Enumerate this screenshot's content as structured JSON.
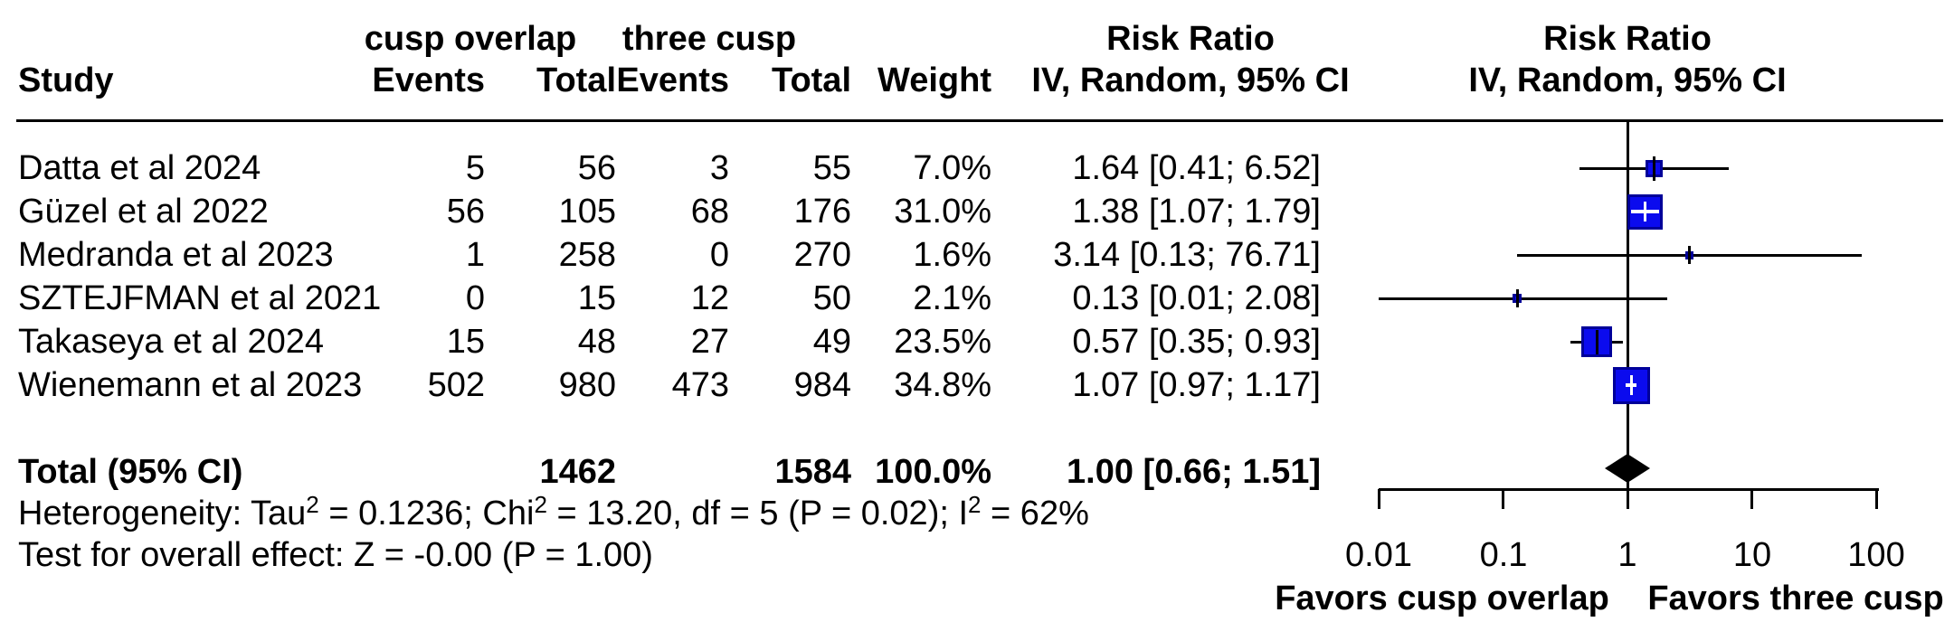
{
  "header": {
    "group1": "cusp overlap",
    "group2": "three cusp",
    "col_study": "Study",
    "col_events1": "Events",
    "col_total1": "Total",
    "col_events2": "Events",
    "col_total2": "Total",
    "col_weight": "Weight",
    "rr_title": "Risk Ratio",
    "rr_subtitle": "IV, Random, 95% CI",
    "plot_rr_title": "Risk Ratio",
    "plot_rr_subtitle": "IV, Random, 95% CI"
  },
  "studies": [
    {
      "name": "Datta et al 2024",
      "events1": "5",
      "total1": "56",
      "events2": "3",
      "total2": "55",
      "weight": "7.0%",
      "weight_pct": 7.0,
      "rr_ci": "1.64 [0.41;  6.52]",
      "rr": 1.64,
      "ci_low": 0.41,
      "ci_high": 6.52
    },
    {
      "name": "Güzel et al 2022",
      "events1": "56",
      "total1": "105",
      "events2": "68",
      "total2": "176",
      "weight": "31.0%",
      "weight_pct": 31.0,
      "rr_ci": "1.38 [1.07;  1.79]",
      "rr": 1.38,
      "ci_low": 1.07,
      "ci_high": 1.79
    },
    {
      "name": "Medranda et al 2023",
      "events1": "1",
      "total1": "258",
      "events2": "0",
      "total2": "270",
      "weight": "1.6%",
      "weight_pct": 1.6,
      "rr_ci": "3.14 [0.13; 76.71]",
      "rr": 3.14,
      "ci_low": 0.13,
      "ci_high": 76.71
    },
    {
      "name": "SZTEJFMAN et al 2021",
      "events1": "0",
      "total1": "15",
      "events2": "12",
      "total2": "50",
      "weight": "2.1%",
      "weight_pct": 2.1,
      "rr_ci": "0.13 [0.01;  2.08]",
      "rr": 0.13,
      "ci_low": 0.01,
      "ci_high": 2.08
    },
    {
      "name": "Takaseya et al 2024",
      "events1": "15",
      "total1": "48",
      "events2": "27",
      "total2": "49",
      "weight": "23.5%",
      "weight_pct": 23.5,
      "rr_ci": "0.57 [0.35;  0.93]",
      "rr": 0.57,
      "ci_low": 0.35,
      "ci_high": 0.93
    },
    {
      "name": "Wienemann et al 2023",
      "events1": "502",
      "total1": "980",
      "events2": "473",
      "total2": "984",
      "weight": "34.8%",
      "weight_pct": 34.8,
      "rr_ci": "1.07 [0.97;  1.17]",
      "rr": 1.07,
      "ci_low": 0.97,
      "ci_high": 1.17
    }
  ],
  "total": {
    "label": "Total (95% CI)",
    "total1": "1462",
    "total2": "1584",
    "weight": "100.0%",
    "rr_ci": "1.00 [0.66;  1.51]",
    "rr": 1.0,
    "ci_low": 0.66,
    "ci_high": 1.51
  },
  "heterogeneity_parts": [
    {
      "text": "Heterogeneity: Tau",
      "sup": false
    },
    {
      "text": "2",
      "sup": true
    },
    {
      "text": " = 0.1236; Chi",
      "sup": false
    },
    {
      "text": "2",
      "sup": true
    },
    {
      "text": " = 13.20, df = 5 (P = 0.02); I",
      "sup": false
    },
    {
      "text": "2",
      "sup": true
    },
    {
      "text": " = 62%",
      "sup": false
    }
  ],
  "overall_test": "Test for overall effect: Z = -0.00 (P = 1.00)",
  "axis": {
    "ticks": [
      0.01,
      0.1,
      1,
      10,
      100
    ],
    "tick_labels": [
      "0.01",
      "0.1",
      "1",
      "10",
      "100"
    ],
    "favors_left": "Favors cusp overlap",
    "favors_right": "Favors three cusp"
  },
  "colors": {
    "square_fill": "#0b0bee",
    "square_border": "#000099",
    "line": "#000000",
    "diamond": "#000000",
    "big_square_cross": "#ffffff"
  },
  "chart_data": {
    "type": "scatter",
    "subtype": "forest_plot_meta_analysis",
    "effect_measure": "Risk Ratio",
    "model": "IV, Random, 95% CI",
    "x_scale": "log10",
    "x_ticks": [
      0.01,
      0.1,
      1,
      10,
      100
    ],
    "xlim": [
      0.01,
      100
    ],
    "reference_line": 1,
    "xlabel_left": "Favors cusp overlap",
    "xlabel_right": "Favors three cusp",
    "groups": [
      "cusp overlap",
      "three cusp"
    ],
    "studies": [
      {
        "study": "Datta et al 2024",
        "events_cusp_overlap": 5,
        "total_cusp_overlap": 56,
        "events_three_cusp": 3,
        "total_three_cusp": 55,
        "weight_pct": 7.0,
        "rr": 1.64,
        "ci95": [
          0.41,
          6.52
        ]
      },
      {
        "study": "Güzel et al 2022",
        "events_cusp_overlap": 56,
        "total_cusp_overlap": 105,
        "events_three_cusp": 68,
        "total_three_cusp": 176,
        "weight_pct": 31.0,
        "rr": 1.38,
        "ci95": [
          1.07,
          1.79
        ]
      },
      {
        "study": "Medranda et al 2023",
        "events_cusp_overlap": 1,
        "total_cusp_overlap": 258,
        "events_three_cusp": 0,
        "total_three_cusp": 270,
        "weight_pct": 1.6,
        "rr": 3.14,
        "ci95": [
          0.13,
          76.71
        ]
      },
      {
        "study": "SZTEJFMAN et al 2021",
        "events_cusp_overlap": 0,
        "total_cusp_overlap": 15,
        "events_three_cusp": 12,
        "total_three_cusp": 50,
        "weight_pct": 2.1,
        "rr": 0.13,
        "ci95": [
          0.01,
          2.08
        ]
      },
      {
        "study": "Takaseya et al 2024",
        "events_cusp_overlap": 15,
        "total_cusp_overlap": 48,
        "events_three_cusp": 27,
        "total_three_cusp": 49,
        "weight_pct": 23.5,
        "rr": 0.57,
        "ci95": [
          0.35,
          0.93
        ]
      },
      {
        "study": "Wienemann et al 2023",
        "events_cusp_overlap": 502,
        "total_cusp_overlap": 980,
        "events_three_cusp": 473,
        "total_three_cusp": 984,
        "weight_pct": 34.8,
        "rr": 1.07,
        "ci95": [
          0.97,
          1.17
        ]
      }
    ],
    "total": {
      "label": "Total (95% CI)",
      "total_cusp_overlap": 1462,
      "total_three_cusp": 1584,
      "weight_pct": 100.0,
      "rr": 1.0,
      "ci95": [
        0.66,
        1.51
      ]
    },
    "heterogeneity": "Tau2 = 0.1236; Chi2 = 13.20, df = 5 (P = 0.02); I2 = 62%",
    "overall_effect_test": "Z = -0.00 (P = 1.00)"
  }
}
